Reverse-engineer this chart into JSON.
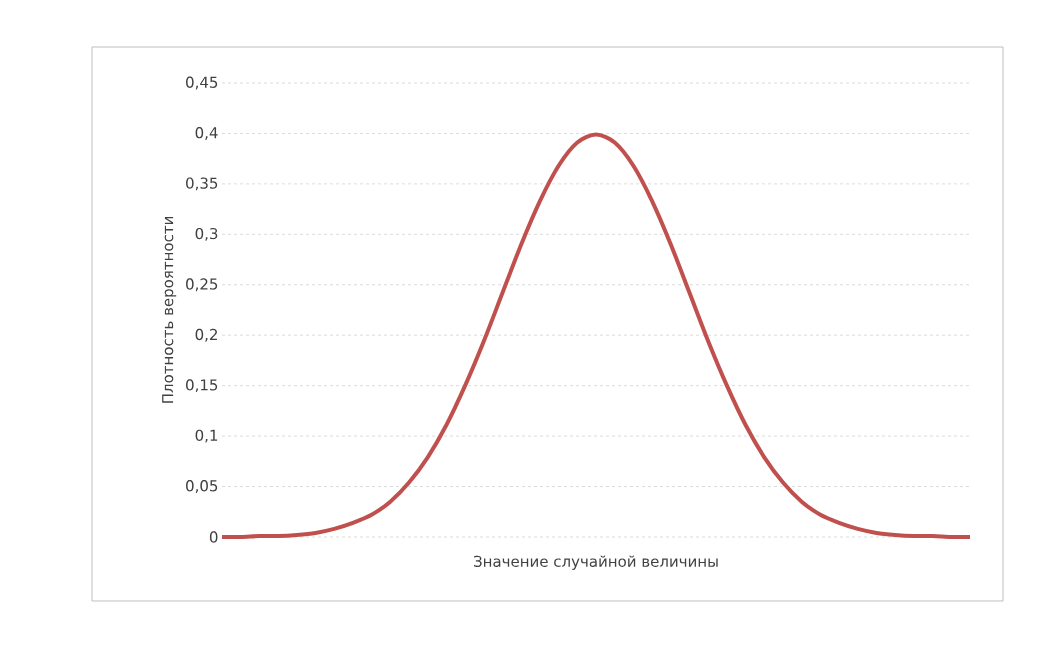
{
  "chart_data": {
    "type": "line",
    "xlabel": "Значение случайной величины",
    "ylabel": "Плотность вероятности",
    "categories": [
      null,
      null,
      null,
      null,
      null,
      null,
      null,
      null,
      null,
      null,
      null,
      null,
      null,
      null,
      null,
      null,
      null,
      null,
      null,
      null,
      null,
      null,
      null,
      null,
      null,
      null,
      null,
      null,
      null,
      null,
      null,
      null,
      null,
      null,
      null,
      null,
      null,
      null,
      null,
      null,
      null
    ],
    "series": [
      {
        "color": "#c0504d",
        "values": [
          0,
          0,
          0.001,
          0.001,
          0.002,
          0.004,
          0.008,
          0.014,
          0.022,
          0.035,
          0.054,
          0.079,
          0.111,
          0.15,
          0.194,
          0.242,
          0.29,
          0.333,
          0.368,
          0.391,
          0.399,
          0.391,
          0.368,
          0.333,
          0.29,
          0.242,
          0.194,
          0.15,
          0.111,
          0.079,
          0.054,
          0.035,
          0.022,
          0.014,
          0.008,
          0.004,
          0.002,
          0.001,
          0.001,
          0,
          0
        ]
      }
    ],
    "ylim": [
      0,
      0.45
    ],
    "yticks": [
      {
        "value": 0,
        "label": "0"
      },
      {
        "value": 0.05,
        "label": "0,05"
      },
      {
        "value": 0.1,
        "label": "0,1"
      },
      {
        "value": 0.15,
        "label": "0,15"
      },
      {
        "value": 0.2,
        "label": "0,2"
      },
      {
        "value": 0.25,
        "label": "0,25"
      },
      {
        "value": 0.3,
        "label": "0,3"
      },
      {
        "value": 0.35,
        "label": "0,35"
      },
      {
        "value": 0.4,
        "label": "0,4"
      },
      {
        "value": 0.45,
        "label": "0,45"
      }
    ],
    "grid": "y",
    "tick_labels": "y",
    "marker": "none",
    "line_style": "solid"
  }
}
